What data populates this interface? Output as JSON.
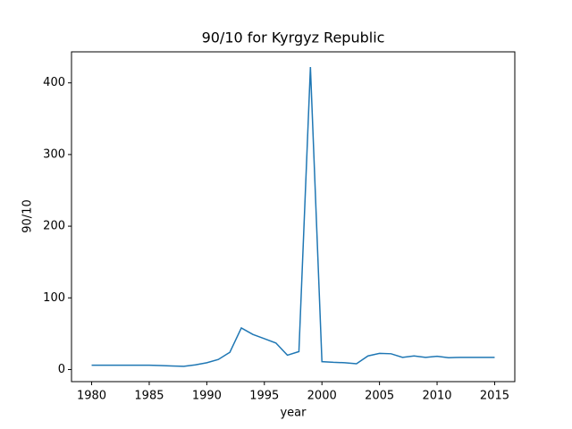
{
  "chart_data": {
    "type": "line",
    "title": "90/10 for Kyrgyz Republic",
    "x_label": "year",
    "y_label": "90/10",
    "x": [
      1980,
      1981,
      1982,
      1983,
      1984,
      1985,
      1986,
      1987,
      1988,
      1989,
      1990,
      1991,
      1992,
      1993,
      1994,
      1995,
      1996,
      1997,
      1998,
      1999,
      2000,
      2001,
      2002,
      2003,
      2004,
      2005,
      2006,
      2007,
      2008,
      2009,
      2010,
      2011,
      2012,
      2013,
      2014,
      2015
    ],
    "series": [
      {
        "name": "90/10",
        "color": "#1f77b4",
        "values": [
          6,
          6,
          6,
          6,
          6,
          6,
          5.5,
          5,
          4.5,
          6.5,
          9.5,
          14,
          24,
          58,
          49,
          43,
          37,
          20,
          25,
          422,
          11,
          10,
          9.5,
          8,
          19,
          22.5,
          22,
          17,
          19,
          17,
          18.5,
          16.5,
          17,
          17,
          17,
          17
        ]
      }
    ],
    "xlim": [
      1978.25,
      2016.75
    ],
    "xticks": [
      1980,
      1985,
      1990,
      1995,
      2000,
      2005,
      2010,
      2015
    ],
    "ylim": [
      -16.9,
      443.3
    ],
    "yticks": [
      0,
      100,
      200,
      300,
      400
    ],
    "grid": false
  }
}
